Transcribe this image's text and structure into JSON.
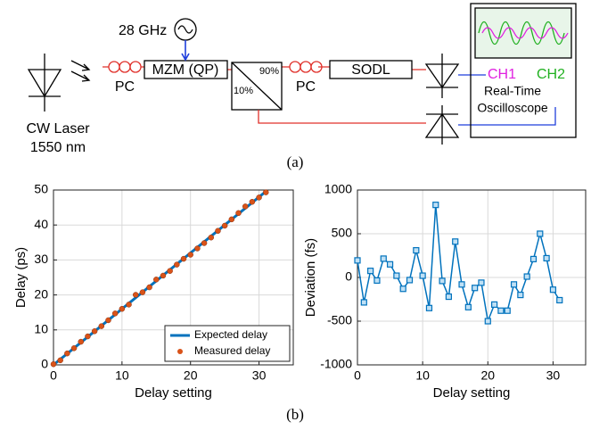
{
  "diagram": {
    "source": "28 GHz",
    "laser": [
      "CW Laser",
      "1550 nm"
    ],
    "pc1": "PC",
    "modulator": "MZM (QP)",
    "split_high": "90%",
    "split_low": "10%",
    "pc2": "PC",
    "delay_line": "SODL",
    "ch1": "CH1",
    "ch2": "CH2",
    "scope": [
      "Real-Time",
      "Oscilloscope"
    ]
  },
  "captions": [
    "(a)",
    "(b)"
  ],
  "chart_data": [
    {
      "type": "line",
      "x_label": "Delay setting",
      "y_label": "Delay (ps)",
      "xlim": [
        0,
        35
      ],
      "ylim": [
        0,
        50
      ],
      "xticks": [
        0,
        10,
        20,
        30
      ],
      "yticks": [
        0,
        10,
        20,
        30,
        40,
        50
      ],
      "grid": true,
      "legend": "lower right",
      "series": [
        {
          "name": "Expected delay",
          "color": "#0072bd",
          "style": "line",
          "x": [
            0,
            31
          ],
          "values": [
            0,
            49.6
          ]
        },
        {
          "name": "Measured delay",
          "color": "#d95319",
          "style": "markers",
          "marker": "circle",
          "x": [
            0,
            1,
            2,
            3,
            4,
            5,
            6,
            7,
            8,
            9,
            10,
            11,
            12,
            13,
            14,
            15,
            16,
            17,
            18,
            19,
            20,
            21,
            22,
            23,
            24,
            25,
            26,
            27,
            28,
            29,
            30,
            31
          ],
          "values": [
            0.195,
            1.315,
            3.275,
            4.765,
            6.615,
            8.15,
            9.62,
            11.07,
            12.77,
            14.71,
            16.02,
            17.25,
            20.03,
            20.76,
            22.18,
            24.41,
            25.52,
            26.86,
            28.68,
            30.34,
            31.5,
            33.29,
            34.82,
            36.42,
            38.32,
            39.8,
            41.61,
            43.41,
            45.3,
            46.62,
            47.86,
            49.34
          ]
        }
      ]
    },
    {
      "type": "line",
      "x_label": "Delay setting",
      "y_label": "Deviation (fs)",
      "xlim": [
        0,
        35
      ],
      "ylim": [
        -1000,
        1000
      ],
      "xticks": [
        0,
        10,
        20,
        30
      ],
      "yticks": [
        -1000,
        -500,
        0,
        500,
        1000
      ],
      "grid": true,
      "x": [
        0,
        1,
        2,
        3,
        4,
        5,
        6,
        7,
        8,
        9,
        10,
        11,
        12,
        13,
        14,
        15,
        16,
        17,
        18,
        19,
        20,
        21,
        22,
        23,
        24,
        25,
        26,
        27,
        28,
        29,
        30,
        31
      ],
      "series": [
        {
          "color": "#0072bd",
          "style": "line-markers",
          "marker": "square",
          "values": [
            195,
            -285,
            75,
            -35,
            215,
            150,
            20,
            -130,
            -30,
            310,
            20,
            -350,
            830,
            -40,
            -220,
            410,
            -80,
            -340,
            -120,
            -60,
            -500,
            -310,
            -380,
            -380,
            -80,
            -200,
            10,
            210,
            500,
            220,
            -140,
            -260
          ]
        }
      ]
    }
  ]
}
